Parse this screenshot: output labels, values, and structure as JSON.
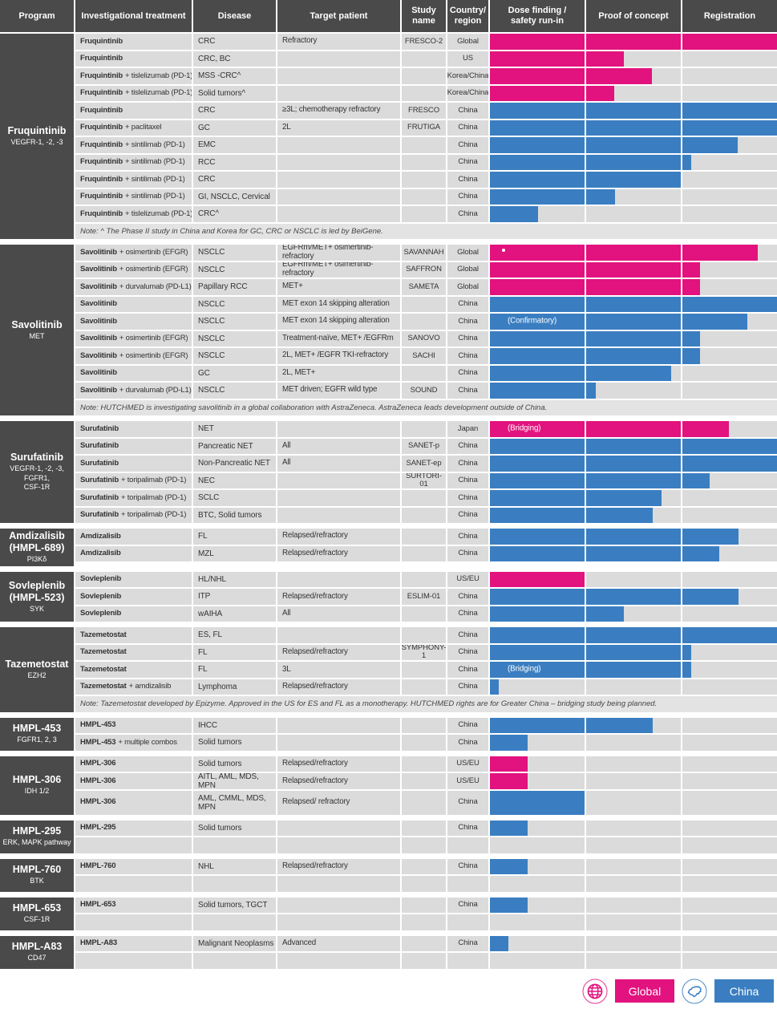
{
  "header": {
    "columns": [
      "Program",
      "Investigational treatment",
      "Disease",
      "Target patient",
      "Study name",
      "Country/region",
      "Dose finding /\nsafety run-in",
      "Proof of concept",
      "Registration"
    ]
  },
  "colors": {
    "global": "#E2127E",
    "china": "#3A7EC1",
    "header_bg": "#4A4A4A",
    "row_bg": "#DBDBDB",
    "note_bg": "#E3E3E3"
  },
  "legend": {
    "global_label": "Global",
    "china_label": "China"
  },
  "chart_data": {
    "type": "bar",
    "orientation": "horizontal",
    "phases": [
      "Dose finding / safety run-in",
      "Proof of concept",
      "Registration"
    ],
    "bar_unit": "percent of full three-phase track",
    "scope_colors": {
      "global": "#E2127E",
      "china": "#3A7EC1"
    },
    "programs": [
      {
        "name": "Fruquintinib",
        "subtitle": "VEGFR-1, -2, -3",
        "rows": [
          {
            "treatment": "Fruquintinib",
            "suffix": "",
            "disease": "CRC",
            "target": "Refractory",
            "study": "FRESCO-2",
            "region": "Global",
            "bar": {
              "scope": "global",
              "pct": 100
            }
          },
          {
            "treatment": "Fruquintinib",
            "suffix": "",
            "disease": "CRC, BC",
            "target": "",
            "study": "",
            "region": "US",
            "bar": {
              "scope": "global",
              "pct": 46.6
            }
          },
          {
            "treatment": "Fruquintinib",
            "suffix": "+ tislelizumab (PD-1)",
            "disease": "MSS -CRC^",
            "target": "",
            "study": "",
            "region": "Korea/China",
            "bar": {
              "scope": "global",
              "pct": 56.4
            }
          },
          {
            "treatment": "Fruquintinib",
            "suffix": "+ tislelizumab (PD-1)",
            "disease": "Solid tumors^",
            "target": "",
            "study": "",
            "region": "Korea/China",
            "bar": {
              "scope": "global",
              "pct": 43.3
            }
          },
          {
            "treatment": "Fruquintinib",
            "suffix": "",
            "disease": "CRC",
            "target": "≥3L; chemotherapy refractory",
            "study": "FRESCO",
            "region": "China",
            "bar": {
              "scope": "china",
              "pct": 100
            }
          },
          {
            "treatment": "Fruquintinib",
            "suffix": "+ paclitaxel",
            "disease": "GC",
            "target": "2L",
            "study": "FRUTIGA",
            "region": "China",
            "bar": {
              "scope": "china",
              "pct": 100
            }
          },
          {
            "treatment": "Fruquintinib",
            "suffix": "+ sintilimab (PD-1)",
            "disease": "EMC",
            "target": "",
            "study": "",
            "region": "China",
            "bar": {
              "scope": "china",
              "pct": 86.3
            }
          },
          {
            "treatment": "Fruquintinib",
            "suffix": "+ sintilimab (PD-1)",
            "disease": "RCC",
            "target": "",
            "study": "",
            "region": "China",
            "bar": {
              "scope": "china",
              "pct": 70.1
            }
          },
          {
            "treatment": "Fruquintinib",
            "suffix": "+ sintilimab (PD-1)",
            "disease": "CRC",
            "target": "",
            "study": "",
            "region": "China",
            "bar": {
              "scope": "china",
              "pct": 66.8
            }
          },
          {
            "treatment": "Fruquintinib",
            "suffix": "+ sintilimab (PD-1)",
            "disease": "GI, NSCLC, Cervical",
            "target": "",
            "study": "",
            "region": "China",
            "bar": {
              "scope": "china",
              "pct": 43.6
            }
          },
          {
            "treatment": "Fruquintinib",
            "suffix": "+ tislelizumab (PD-1)",
            "disease": "CRC^",
            "target": "",
            "study": "",
            "region": "China",
            "bar": {
              "scope": "china",
              "pct": 16.8
            }
          },
          {
            "note": "Note: ^ The Phase II study in China and Korea for GC, CRC or NSCLC is led by  BeiGene."
          }
        ]
      },
      {
        "name": "Savolitinib",
        "subtitle": "MET",
        "rows": [
          {
            "treatment": "Savolitinib",
            "suffix": "+ osimertinib (EFGR)",
            "disease": "NSCLC",
            "target": "EGFRm/MET+ osimertinib-refractory",
            "study": "SAVANNAH",
            "region": "Global",
            "bar": {
              "scope": "global",
              "pct": 93.3,
              "marker": true
            }
          },
          {
            "treatment": "Savolitinib",
            "suffix": "+ osimertinib (EFGR)",
            "disease": "NSCLC",
            "target": "EGFRm/MET+ osimertinib-refractory",
            "study": "SAFFRON",
            "region": "Global",
            "bar": {
              "scope": "global",
              "pct": 73.2
            }
          },
          {
            "treatment": "Savolitinib",
            "suffix": "+ durvalumab (PD-L1)",
            "disease": "Papillary RCC",
            "target": "MET+",
            "study": "SAMETA",
            "region": "Global",
            "bar": {
              "scope": "global",
              "pct": 73.2
            }
          },
          {
            "treatment": "Savolitinib",
            "suffix": "",
            "disease": "NSCLC",
            "target": "MET exon 14 skipping alteration",
            "study": "",
            "region": "China",
            "bar": {
              "scope": "china",
              "pct": 100
            }
          },
          {
            "treatment": "Savolitinib",
            "suffix": "",
            "disease": "NSCLC",
            "target": "MET exon 14 skipping alteration",
            "study": "",
            "region": "China",
            "bar": {
              "scope": "china",
              "pct": 89.7,
              "label": "(Confirmatory)"
            }
          },
          {
            "treatment": "Savolitinib",
            "suffix": "+ osimertinib (EFGR)",
            "disease": "NSCLC",
            "target": "Treatment-naïve, MET+ /EGFRm",
            "study": "SANOVO",
            "region": "China",
            "bar": {
              "scope": "china",
              "pct": 73.2
            }
          },
          {
            "treatment": "Savolitinib",
            "suffix": "+ osimertinib (EFGR)",
            "disease": "NSCLC",
            "target": "2L, MET+ /EGFR TKI-refractory",
            "study": "SACHI",
            "region": "China",
            "bar": {
              "scope": "china",
              "pct": 73.2
            }
          },
          {
            "treatment": "Savolitinib",
            "suffix": "",
            "disease": "GC",
            "target": "2L, MET+",
            "study": "",
            "region": "China",
            "bar": {
              "scope": "china",
              "pct": 63.1
            }
          },
          {
            "treatment": "Savolitinib",
            "suffix": "+ durvalumab (PD-L1)",
            "disease": "NSCLC",
            "target": "MET driven; EGFR wild type",
            "study": "SOUND",
            "region": "China",
            "bar": {
              "scope": "china",
              "pct": 36.9
            }
          },
          {
            "note": "Note: HUTCHMED is investigating savolitinib in a global collaboration with AstraZeneca. AstraZeneca leads development outside of China."
          }
        ]
      },
      {
        "name": "Surufatinib",
        "subtitle": "VEGFR-1, -2, -3,\nFGFR1,\nCSF-1R",
        "rows": [
          {
            "treatment": "Surufatinib",
            "suffix": "",
            "disease": "NET",
            "target": "",
            "study": "",
            "region": "Japan",
            "bar": {
              "scope": "global",
              "pct": 83.2,
              "label": "(Bridging)"
            }
          },
          {
            "treatment": "Surufatinib",
            "suffix": "",
            "disease": "Pancreatic NET",
            "target": "All",
            "study": "SANET-p",
            "region": "China",
            "bar": {
              "scope": "china",
              "pct": 100
            }
          },
          {
            "treatment": "Surufatinib",
            "suffix": "",
            "disease": "Non-Pancreatic NET",
            "target": "All",
            "study": "SANET-ep",
            "region": "China",
            "bar": {
              "scope": "china",
              "pct": 100
            }
          },
          {
            "treatment": "Surufatinib",
            "suffix": "+ toripalimab (PD-1)",
            "disease": "NEC",
            "target": "",
            "study": "SURTORI-01",
            "region": "China",
            "bar": {
              "scope": "china",
              "pct": 76.5
            }
          },
          {
            "treatment": "Surufatinib",
            "suffix": "+ toripalimab (PD-1)",
            "disease": "SCLC",
            "target": "",
            "study": "",
            "region": "China",
            "bar": {
              "scope": "china",
              "pct": 59.8
            }
          },
          {
            "treatment": "Surufatinib",
            "suffix": "+ toripalimab (PD-1)",
            "disease": "BTC, Solid tumors",
            "target": "",
            "study": "",
            "region": "China",
            "bar": {
              "scope": "china",
              "pct": 56.7
            }
          }
        ]
      },
      {
        "name": "Amdizalisib\n(HMPL-689)",
        "subtitle": "PI3Kδ",
        "rows": [
          {
            "treatment": "Amdizalisib",
            "suffix": "",
            "disease": "FL",
            "target": "Relapsed/refractory",
            "study": "",
            "region": "China",
            "bar": {
              "scope": "china",
              "pct": 86.6
            }
          },
          {
            "treatment": "Amdizalisib",
            "suffix": "",
            "disease": "MZL",
            "target": "Relapsed/refractory",
            "study": "",
            "region": "China",
            "bar": {
              "scope": "china",
              "pct": 79.9
            }
          }
        ]
      },
      {
        "name": "Sovleplenib\n(HMPL-523)",
        "subtitle": "SYK",
        "rows": [
          {
            "treatment": "Sovleplenib",
            "suffix": "",
            "disease": "HL/NHL",
            "target": "",
            "study": "",
            "region": "US/EU",
            "bar": {
              "scope": "global",
              "pct": 33.2
            }
          },
          {
            "treatment": "Sovleplenib",
            "suffix": "",
            "disease": "ITP",
            "target": "Relapsed/refractory",
            "study": "ESLIM-01",
            "region": "China",
            "bar": {
              "scope": "china",
              "pct": 86.6
            }
          },
          {
            "treatment": "Sovleplenib",
            "suffix": "",
            "disease": "wAIHA",
            "target": "All",
            "study": "",
            "region": "China",
            "bar": {
              "scope": "china",
              "pct": 46.6
            }
          }
        ]
      },
      {
        "name": "Tazemetostat",
        "subtitle": "EZH2",
        "rows": [
          {
            "treatment": "Tazemetostat",
            "suffix": "",
            "disease": "ES, FL",
            "target": "",
            "study": "",
            "region": "China",
            "bar": {
              "scope": "china",
              "pct": 100
            }
          },
          {
            "treatment": "Tazemetostat",
            "suffix": "",
            "disease": "FL",
            "target": "Relapsed/refractory",
            "study": "SYMPHONY-1",
            "region": "China",
            "bar": {
              "scope": "china",
              "pct": 70.1
            }
          },
          {
            "treatment": "Tazemetostat",
            "suffix": "",
            "disease": "FL",
            "target": "3L",
            "study": "",
            "region": "China",
            "bar": {
              "scope": "china",
              "pct": 70.1,
              "label": "(Bridging)"
            }
          },
          {
            "treatment": "Tazemetostat",
            "suffix": "+ amdizalisib",
            "disease": "Lymphoma",
            "target": "Relapsed/refractory",
            "study": "",
            "region": "China",
            "bar": {
              "scope": "china",
              "pct": 3.1
            }
          },
          {
            "note": "Note: Tazemetostat developed by Epizyme. Approved in the US for ES and FL as a monotherapy. HUTCHMED rights are for Greater China  – bridging study being planned."
          }
        ]
      },
      {
        "name": "HMPL-453",
        "subtitle": "FGFR1, 2, 3",
        "rows": [
          {
            "treatment": "HMPL-453",
            "suffix": "",
            "disease": "IHCC",
            "target": "",
            "study": "",
            "region": "China",
            "bar": {
              "scope": "china",
              "pct": 56.7
            }
          },
          {
            "treatment": "HMPL-453",
            "suffix": "+ multiple combos",
            "disease": "Solid tumors",
            "target": "",
            "study": "",
            "region": "China",
            "bar": {
              "scope": "china",
              "pct": 13.1
            }
          }
        ]
      },
      {
        "name": "HMPL-306",
        "subtitle": "IDH 1/2",
        "rows": [
          {
            "treatment": "HMPL-306",
            "suffix": "",
            "disease": "Solid tumors",
            "target": "Relapsed/refractory",
            "study": "",
            "region": "US/EU",
            "bar": {
              "scope": "global",
              "pct": 13.1
            }
          },
          {
            "treatment": "HMPL-306",
            "suffix": "",
            "disease": "AITL, AML, MDS, MPN",
            "target": "Relapsed/refractory",
            "study": "",
            "region": "US/EU",
            "bar": {
              "scope": "global",
              "pct": 13.1
            }
          },
          {
            "treatment": "HMPL-306",
            "suffix": "",
            "disease": "AML, CMML, MDS, MPN",
            "target": "Relapsed/ refractory",
            "study": "",
            "region": "China",
            "tall": true,
            "bar": {
              "scope": "china",
              "pct": 33.2
            }
          }
        ]
      },
      {
        "name": "HMPL-295",
        "subtitle": "ERK, MAPK pathway",
        "rows": [
          {
            "treatment": "HMPL-295",
            "suffix": "",
            "disease": "Solid tumors",
            "target": "",
            "study": "",
            "region": "China",
            "bar": {
              "scope": "china",
              "pct": 13.1
            }
          },
          {
            "treatment": "",
            "suffix": "",
            "disease": "",
            "target": "",
            "study": "",
            "region": ""
          }
        ]
      },
      {
        "name": "HMPL-760",
        "subtitle": "BTK",
        "rows": [
          {
            "treatment": "HMPL-760",
            "suffix": "",
            "disease": "NHL",
            "target": "Relapsed/refractory",
            "study": "",
            "region": "China",
            "bar": {
              "scope": "china",
              "pct": 13.1
            }
          },
          {
            "treatment": "",
            "suffix": "",
            "disease": "",
            "target": "",
            "study": "",
            "region": ""
          }
        ]
      },
      {
        "name": "HMPL-653",
        "subtitle": "CSF-1R",
        "rows": [
          {
            "treatment": "HMPL-653",
            "suffix": "",
            "disease": "Solid tumors, TGCT",
            "target": "",
            "study": "",
            "region": "China",
            "bar": {
              "scope": "china",
              "pct": 13.1
            }
          },
          {
            "treatment": "",
            "suffix": "",
            "disease": "",
            "target": "",
            "study": "",
            "region": ""
          }
        ]
      },
      {
        "name": "HMPL-A83",
        "subtitle": "CD47",
        "rows": [
          {
            "treatment": "HMPL-A83",
            "suffix": "",
            "disease": "Malignant Neoplasms",
            "target": "Advanced",
            "study": "",
            "region": "China",
            "bar": {
              "scope": "china",
              "pct": 6.4
            }
          },
          {
            "treatment": "",
            "suffix": "",
            "disease": "",
            "target": "",
            "study": "",
            "region": ""
          }
        ]
      }
    ]
  }
}
